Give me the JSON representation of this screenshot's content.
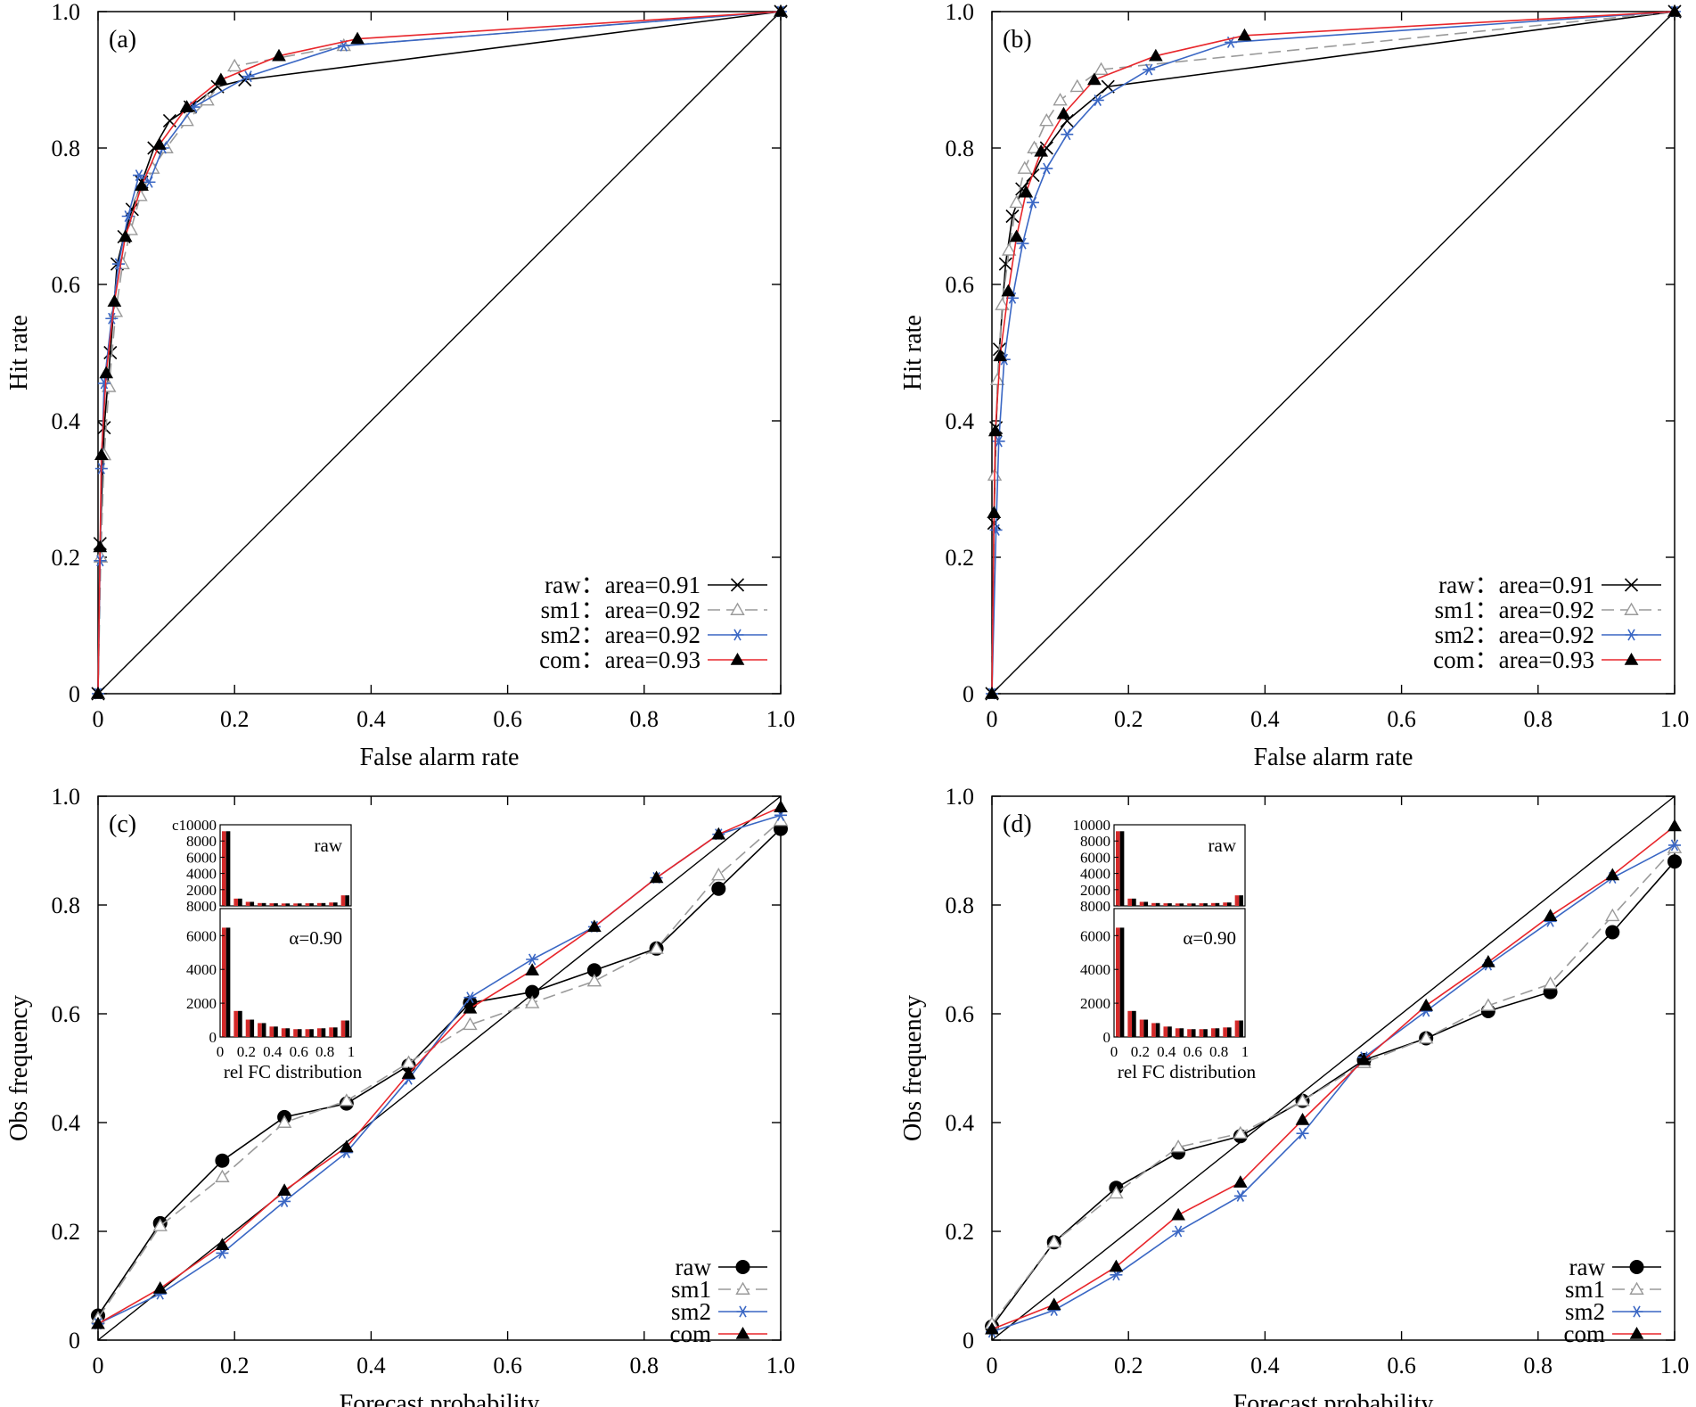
{
  "styles": {
    "raw": {
      "color": "#000000",
      "dash": ""
    },
    "sm1": {
      "color": "#9a9a9a",
      "dash": "14,7"
    },
    "sm2": {
      "color": "#3a67c4",
      "dash": ""
    },
    "com": {
      "color": "#e8262b",
      "dash": ""
    },
    "histogram": {
      "black": "#000000",
      "red": "#d42a2a"
    }
  },
  "chart_data": [
    {
      "type": "line",
      "panel": "(a)",
      "kind": "roc",
      "xlabel": "False alarm rate",
      "ylabel": "Hit rate",
      "xlim": [
        0,
        1
      ],
      "ylim": [
        0,
        1
      ],
      "xticks": [
        "0",
        "0.2",
        "0.4",
        "0.6",
        "0.8",
        "1.0"
      ],
      "yticks": [
        "0",
        "0.2",
        "0.4",
        "0.6",
        "0.8",
        "1.0"
      ],
      "diagonal": true,
      "legend_position": "bottom-right",
      "series": [
        {
          "name": "raw",
          "legend": "raw：area=0.91",
          "marker": "x",
          "x": [
            0,
            0.003,
            0.009,
            0.018,
            0.028,
            0.038,
            0.05,
            0.064,
            0.082,
            0.105,
            0.135,
            0.175,
            0.215,
            1.0
          ],
          "y": [
            0,
            0.22,
            0.39,
            0.5,
            0.63,
            0.67,
            0.71,
            0.75,
            0.8,
            0.84,
            0.86,
            0.89,
            0.9,
            1.0
          ]
        },
        {
          "name": "sm1",
          "legend": "sm1：area=0.92",
          "marker": "triangle-open",
          "x": [
            0,
            0.004,
            0.009,
            0.016,
            0.026,
            0.036,
            0.048,
            0.062,
            0.08,
            0.1,
            0.13,
            0.16,
            0.2,
            0.36,
            1.0
          ],
          "y": [
            0,
            0.2,
            0.35,
            0.45,
            0.56,
            0.63,
            0.68,
            0.73,
            0.77,
            0.8,
            0.84,
            0.87,
            0.92,
            0.95,
            1.0
          ]
        },
        {
          "name": "sm2",
          "legend": "sm2：area=0.92",
          "marker": "asterisk",
          "x": [
            0,
            0.003,
            0.005,
            0.009,
            0.02,
            0.03,
            0.044,
            0.06,
            0.075,
            0.095,
            0.14,
            0.22,
            0.36,
            1.0
          ],
          "y": [
            0,
            0.195,
            0.33,
            0.455,
            0.55,
            0.63,
            0.7,
            0.76,
            0.75,
            0.8,
            0.86,
            0.905,
            0.95,
            1.0
          ]
        },
        {
          "name": "com",
          "legend": "com：area=0.93",
          "marker": "triangle-filled",
          "x": [
            0,
            0.003,
            0.005,
            0.012,
            0.024,
            0.04,
            0.064,
            0.09,
            0.13,
            0.18,
            0.265,
            0.38,
            1.0
          ],
          "y": [
            0,
            0.215,
            0.35,
            0.47,
            0.575,
            0.67,
            0.745,
            0.805,
            0.86,
            0.9,
            0.935,
            0.96,
            1.0
          ]
        }
      ]
    },
    {
      "type": "line",
      "panel": "(b)",
      "kind": "roc",
      "xlabel": "False alarm rate",
      "ylabel": "Hit rate",
      "xlim": [
        0,
        1
      ],
      "ylim": [
        0,
        1
      ],
      "xticks": [
        "0",
        "0.2",
        "0.4",
        "0.6",
        "0.8",
        "1.0"
      ],
      "yticks": [
        "0",
        "0.2",
        "0.4",
        "0.6",
        "0.8",
        "1.0"
      ],
      "diagonal": true,
      "legend_position": "bottom-right",
      "series": [
        {
          "name": "raw",
          "legend": "raw：area=0.91",
          "marker": "x",
          "x": [
            0,
            0.003,
            0.006,
            0.011,
            0.02,
            0.03,
            0.044,
            0.06,
            0.08,
            0.11,
            0.17,
            1.0
          ],
          "y": [
            0,
            0.25,
            0.39,
            0.505,
            0.63,
            0.7,
            0.74,
            0.76,
            0.8,
            0.84,
            0.89,
            1.0
          ]
        },
        {
          "name": "sm1",
          "legend": "sm1：area=0.92",
          "marker": "triangle-open",
          "x": [
            0,
            0.004,
            0.008,
            0.015,
            0.025,
            0.036,
            0.048,
            0.062,
            0.08,
            0.1,
            0.125,
            0.16,
            1.0
          ],
          "y": [
            0,
            0.32,
            0.46,
            0.57,
            0.65,
            0.72,
            0.77,
            0.8,
            0.84,
            0.87,
            0.89,
            0.915,
            1.0
          ]
        },
        {
          "name": "sm2",
          "legend": "sm2：area=0.92",
          "marker": "asterisk",
          "x": [
            0,
            0.006,
            0.01,
            0.018,
            0.03,
            0.045,
            0.06,
            0.08,
            0.11,
            0.155,
            0.23,
            0.35,
            1.0
          ],
          "y": [
            0,
            0.24,
            0.37,
            0.49,
            0.58,
            0.66,
            0.72,
            0.77,
            0.82,
            0.87,
            0.915,
            0.955,
            1.0
          ]
        },
        {
          "name": "com",
          "legend": "com：area=0.93",
          "marker": "triangle-filled",
          "x": [
            0,
            0.003,
            0.005,
            0.012,
            0.024,
            0.036,
            0.05,
            0.072,
            0.105,
            0.15,
            0.24,
            0.37,
            1.0
          ],
          "y": [
            0,
            0.265,
            0.385,
            0.495,
            0.59,
            0.67,
            0.735,
            0.795,
            0.85,
            0.9,
            0.935,
            0.965,
            1.0
          ]
        }
      ]
    },
    {
      "type": "line",
      "panel": "(c)",
      "kind": "reliability",
      "xlabel": "Forecast probability",
      "ylabel": "Obs frequency",
      "xlim": [
        0,
        1
      ],
      "ylim": [
        0,
        1
      ],
      "xticks": [
        "0",
        "0.2",
        "0.4",
        "0.6",
        "0.8",
        "1.0"
      ],
      "yticks": [
        "0",
        "0.2",
        "0.4",
        "0.6",
        "0.8",
        "1.0"
      ],
      "diagonal": true,
      "legend_position": "bottom-right",
      "series": [
        {
          "name": "raw",
          "legend": "raw",
          "marker": "circle-filled",
          "x": [
            0,
            0.091,
            0.182,
            0.273,
            0.364,
            0.455,
            0.545,
            0.636,
            0.727,
            0.818,
            0.909,
            1.0
          ],
          "y": [
            0.045,
            0.215,
            0.33,
            0.41,
            0.435,
            0.505,
            0.62,
            0.64,
            0.68,
            0.72,
            0.83,
            0.94
          ]
        },
        {
          "name": "sm1",
          "legend": "sm1",
          "marker": "triangle-open",
          "x": [
            0,
            0.091,
            0.182,
            0.273,
            0.364,
            0.455,
            0.545,
            0.636,
            0.727,
            0.818,
            0.909,
            1.0
          ],
          "y": [
            0.04,
            0.21,
            0.3,
            0.4,
            0.44,
            0.51,
            0.58,
            0.62,
            0.66,
            0.72,
            0.855,
            0.955
          ]
        },
        {
          "name": "sm2",
          "legend": "sm2",
          "marker": "asterisk",
          "x": [
            0,
            0.091,
            0.182,
            0.273,
            0.364,
            0.455,
            0.545,
            0.636,
            0.727,
            0.818,
            0.909,
            1.0
          ],
          "y": [
            0.03,
            0.085,
            0.16,
            0.255,
            0.345,
            0.48,
            0.63,
            0.7,
            0.76,
            0.85,
            0.93,
            0.965
          ]
        },
        {
          "name": "com",
          "legend": "com",
          "marker": "triangle-filled",
          "x": [
            0,
            0.091,
            0.182,
            0.273,
            0.364,
            0.455,
            0.545,
            0.636,
            0.727,
            0.818,
            0.909,
            1.0
          ],
          "y": [
            0.03,
            0.095,
            0.175,
            0.275,
            0.355,
            0.49,
            0.61,
            0.68,
            0.76,
            0.85,
            0.93,
            0.98
          ]
        }
      ],
      "inset": {
        "xlabel": "rel FC distribution",
        "xticks": [
          "0",
          "0.2",
          "0.4",
          "0.6",
          "0.8",
          "1"
        ],
        "top": {
          "label": "raw",
          "yticks": [
            "c10000",
            "8000",
            "6000",
            "4000",
            "2000",
            "8000"
          ],
          "ymax": 10000,
          "values": [
            9200,
            900,
            500,
            350,
            320,
            300,
            300,
            320,
            350,
            420,
            1300
          ]
        },
        "bottom": {
          "label": "α=0.90",
          "yticks": [
            "0",
            "2000",
            "4000",
            "6000"
          ],
          "ymax": 7400,
          "values": [
            6300,
            1500,
            1000,
            800,
            600,
            500,
            450,
            450,
            500,
            550,
            950
          ]
        }
      }
    },
    {
      "type": "line",
      "panel": "(d)",
      "kind": "reliability",
      "xlabel": "Forecast probability",
      "ylabel": "Obs frequency",
      "xlim": [
        0,
        1
      ],
      "ylim": [
        0,
        1
      ],
      "xticks": [
        "0",
        "0.2",
        "0.4",
        "0.6",
        "0.8",
        "1.0"
      ],
      "yticks": [
        "0",
        "0.2",
        "0.4",
        "0.6",
        "0.8",
        "1.0"
      ],
      "diagonal": true,
      "legend_position": "bottom-right",
      "series": [
        {
          "name": "raw",
          "legend": "raw",
          "marker": "circle-filled",
          "x": [
            0,
            0.091,
            0.182,
            0.273,
            0.364,
            0.455,
            0.545,
            0.636,
            0.727,
            0.818,
            0.909,
            1.0
          ],
          "y": [
            0.025,
            0.18,
            0.28,
            0.345,
            0.375,
            0.44,
            0.515,
            0.555,
            0.605,
            0.64,
            0.75,
            0.88
          ]
        },
        {
          "name": "sm1",
          "legend": "sm1",
          "marker": "triangle-open",
          "x": [
            0,
            0.091,
            0.182,
            0.273,
            0.364,
            0.455,
            0.545,
            0.636,
            0.727,
            0.818,
            0.909,
            1.0
          ],
          "y": [
            0.03,
            0.18,
            0.27,
            0.355,
            0.38,
            0.44,
            0.51,
            0.555,
            0.615,
            0.655,
            0.78,
            0.905
          ]
        },
        {
          "name": "sm2",
          "legend": "sm2",
          "marker": "asterisk",
          "x": [
            0,
            0.091,
            0.182,
            0.273,
            0.364,
            0.455,
            0.545,
            0.636,
            0.727,
            0.818,
            0.909,
            1.0
          ],
          "y": [
            0.015,
            0.055,
            0.12,
            0.2,
            0.265,
            0.38,
            0.52,
            0.605,
            0.69,
            0.77,
            0.85,
            0.91
          ]
        },
        {
          "name": "com",
          "legend": "com",
          "marker": "triangle-filled",
          "x": [
            0,
            0.091,
            0.182,
            0.273,
            0.364,
            0.455,
            0.545,
            0.636,
            0.727,
            0.818,
            0.909,
            1.0
          ],
          "y": [
            0.02,
            0.065,
            0.135,
            0.23,
            0.29,
            0.405,
            0.515,
            0.615,
            0.695,
            0.78,
            0.855,
            0.945
          ]
        }
      ],
      "inset": {
        "xlabel": "rel FC distribution",
        "xticks": [
          "0",
          "0.2",
          "0.4",
          "0.6",
          "0.8",
          "1"
        ],
        "top": {
          "label": "raw",
          "yticks": [
            "10000",
            "8000",
            "6000",
            "4000",
            "2000",
            "8000"
          ],
          "ymax": 10000,
          "values": [
            9200,
            900,
            500,
            350,
            320,
            300,
            300,
            320,
            350,
            420,
            1300
          ]
        },
        "bottom": {
          "label": "α=0.90",
          "yticks": [
            "0",
            "2000",
            "4000",
            "6000"
          ],
          "ymax": 7400,
          "values": [
            6300,
            1500,
            1000,
            800,
            600,
            500,
            450,
            450,
            500,
            550,
            950
          ]
        }
      }
    }
  ]
}
